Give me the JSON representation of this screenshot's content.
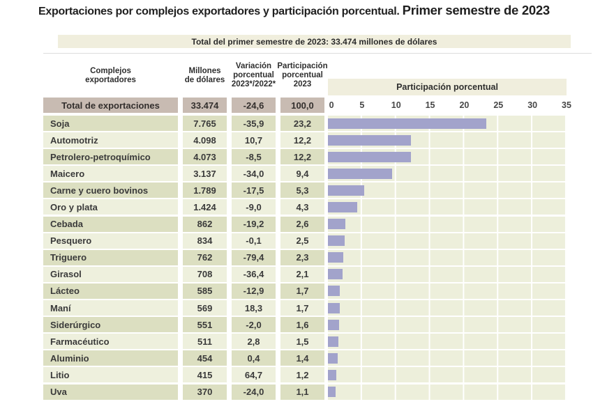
{
  "title": {
    "main": "Exportaciones por complejos exportadores y participación porcentual.",
    "period": "Primer semestre de 2023"
  },
  "banner": "Total del primer semestre de 2023: 33.474 millones de dólares",
  "table": {
    "headers": {
      "complejos": "Complejos\nexportadores",
      "millones": "Millones\nde dólares",
      "variacion": "Variación\nporcentual\n2023*/2022*",
      "participacion": "Participación\nporcentual\n2023"
    },
    "total_row": {
      "label": "Total de exportaciones",
      "millones": "33.474",
      "variacion": "-24,6",
      "participacion": "100,0"
    },
    "rows": [
      {
        "label": "Soja",
        "millones": "7.765",
        "variacion": "-35,9",
        "participacion": "23,2"
      },
      {
        "label": "Automotriz",
        "millones": "4.098",
        "variacion": "10,7",
        "participacion": "12,2"
      },
      {
        "label": "Petrolero-petroquímico",
        "millones": "4.073",
        "variacion": "-8,5",
        "participacion": "12,2"
      },
      {
        "label": "Maicero",
        "millones": "3.137",
        "variacion": "-34,0",
        "participacion": "9,4"
      },
      {
        "label": "Carne y cuero bovinos",
        "millones": "1.789",
        "variacion": "-17,5",
        "participacion": "5,3"
      },
      {
        "label": "Oro y plata",
        "millones": "1.424",
        "variacion": "-9,0",
        "participacion": "4,3"
      },
      {
        "label": "Cebada",
        "millones": "862",
        "variacion": "-19,2",
        "participacion": "2,6"
      },
      {
        "label": "Pesquero",
        "millones": "834",
        "variacion": "-0,1",
        "participacion": "2,5"
      },
      {
        "label": "Triguero",
        "millones": "762",
        "variacion": "-79,4",
        "participacion": "2,3"
      },
      {
        "label": "Girasol",
        "millones": "708",
        "variacion": "-36,4",
        "participacion": "2,1"
      },
      {
        "label": "Lácteo",
        "millones": "585",
        "variacion": "-12,9",
        "participacion": "1,7"
      },
      {
        "label": "Maní",
        "millones": "569",
        "variacion": "18,3",
        "participacion": "1,7"
      },
      {
        "label": "Siderúrgico",
        "millones": "551",
        "variacion": "-2,0",
        "participacion": "1,6"
      },
      {
        "label": "Farmacéutico",
        "millones": "511",
        "variacion": "2,8",
        "participacion": "1,5"
      },
      {
        "label": "Aluminio",
        "millones": "454",
        "variacion": "0,4",
        "participacion": "1,4"
      },
      {
        "label": "Litio",
        "millones": "415",
        "variacion": "64,7",
        "participacion": "1,2"
      },
      {
        "label": "Uva",
        "millones": "370",
        "variacion": "-24,0",
        "participacion": "1,1"
      }
    ]
  },
  "chart_data": {
    "type": "bar",
    "orientation": "horizontal",
    "title": "Participación porcentual",
    "categories": [
      "Soja",
      "Automotriz",
      "Petrolero-petroquímico",
      "Maicero",
      "Carne y cuero bovinos",
      "Oro y plata",
      "Cebada",
      "Pesquero",
      "Triguero",
      "Girasol",
      "Lácteo",
      "Maní",
      "Siderúrgico",
      "Farmacéutico",
      "Aluminio",
      "Litio",
      "Uva"
    ],
    "values": [
      23.2,
      12.2,
      12.2,
      9.4,
      5.3,
      4.3,
      2.6,
      2.5,
      2.3,
      2.1,
      1.7,
      1.7,
      1.6,
      1.5,
      1.4,
      1.2,
      1.1
    ],
    "series_extra": [
      {
        "name": "Millones de dólares",
        "values": [
          7765,
          4098,
          4073,
          3137,
          1789,
          1424,
          862,
          834,
          762,
          708,
          585,
          569,
          551,
          511,
          454,
          415,
          370
        ]
      },
      {
        "name": "Variación porcentual 2023*/2022*",
        "values": [
          -35.9,
          10.7,
          -8.5,
          -34.0,
          -17.5,
          -9.0,
          -19.2,
          -0.1,
          -79.4,
          -36.4,
          -12.9,
          18.3,
          -2.0,
          2.8,
          0.4,
          64.7,
          -24.0
        ]
      }
    ],
    "total": {
      "label": "Total de exportaciones",
      "millones": 33474,
      "variacion": -24.6,
      "participacion": 100.0
    },
    "xlabel": "Participación porcentual",
    "xlim": [
      0,
      35
    ],
    "ticks": [
      0,
      5,
      10,
      15,
      20,
      25,
      30,
      35
    ],
    "grid": true,
    "legend": false,
    "colors": {
      "bar": "#a2a3cb",
      "plot_bg": "#edefdb",
      "row_dark": "#dcdfc1",
      "row_light": "#eef0dd",
      "total_row_bg": "#c8bbb2",
      "band_bg": "#f0eedd",
      "gridline": "#ffffff"
    }
  }
}
